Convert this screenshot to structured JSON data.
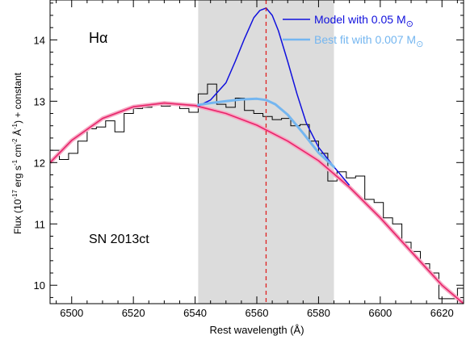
{
  "chart_data": {
    "type": "line",
    "xlabel": "Rest wavelength (Å)",
    "ylabel_main": "Flux  (10",
    "ylabel_parts": [
      "-17",
      " erg s",
      "-1",
      " cm",
      "-2",
      " Å",
      "-1",
      ") + constant"
    ],
    "xlim": [
      6493,
      6627
    ],
    "ylim": [
      9.7,
      14.65
    ],
    "x_ticks": [
      6500,
      6520,
      6540,
      6560,
      6580,
      6600,
      6620
    ],
    "y_ticks": [
      10,
      11,
      12,
      13,
      14
    ],
    "shaded_region": [
      6541,
      6585
    ],
    "reference_line_x": 6563,
    "annotations": {
      "line_name": "Hα",
      "object_name": "SN 2013ct"
    },
    "legend": {
      "placement": "top-right",
      "entries": [
        {
          "label": "Model with 0.05 M",
          "suffix": "⊙",
          "color": "#1010dd"
        },
        {
          "label": "Best fit with 0.007 M",
          "suffix": "⊙",
          "color": "#74b6f0"
        }
      ]
    },
    "colors": {
      "spectrum": "#000000",
      "continuum": "#e8246a",
      "continuum_band": "#f6a9c4",
      "model": "#1010dd",
      "best_fit": "#74b6f0",
      "reference_line": "#e02020",
      "shade": "#dcdcdc"
    },
    "series": [
      {
        "name": "Spectrum",
        "style": "step",
        "x": [
          6493,
          6496,
          6499,
          6502,
          6505,
          6508,
          6511,
          6514,
          6517,
          6520,
          6523,
          6526,
          6529,
          6532,
          6535,
          6538,
          6541,
          6544,
          6547,
          6550,
          6553,
          6556,
          6559,
          6562,
          6565,
          6568,
          6571,
          6574,
          6577,
          6580,
          6583,
          6586,
          6589,
          6592,
          6595,
          6598,
          6601,
          6604,
          6607,
          6610,
          6613,
          6616,
          6619,
          6622,
          6625
        ],
        "y": [
          12.2,
          12.05,
          12.15,
          12.35,
          12.55,
          12.58,
          12.68,
          12.5,
          12.8,
          12.88,
          12.9,
          12.95,
          12.92,
          12.95,
          12.88,
          12.82,
          13.12,
          13.28,
          12.95,
          12.9,
          13.05,
          12.85,
          12.8,
          12.75,
          12.7,
          12.72,
          12.6,
          12.62,
          12.35,
          12.15,
          11.7,
          11.85,
          11.75,
          11.78,
          11.4,
          11.35,
          11.1,
          11.0,
          10.7,
          10.55,
          10.35,
          10.2,
          9.78,
          9.78,
          9.95
        ]
      },
      {
        "name": "Continuum",
        "style": "line",
        "x": [
          6493,
          6500,
          6510,
          6520,
          6530,
          6540,
          6550,
          6560,
          6570,
          6580,
          6590,
          6600,
          6610,
          6620,
          6627
        ],
        "y": [
          12.0,
          12.36,
          12.72,
          12.91,
          12.97,
          12.93,
          12.8,
          12.61,
          12.35,
          12.03,
          11.6,
          11.1,
          10.55,
          10.0,
          9.7
        ]
      },
      {
        "name": "Model with 0.05 M⊙",
        "style": "line",
        "x": [
          6541,
          6545,
          6550,
          6553,
          6556,
          6559,
          6561,
          6563,
          6565,
          6567,
          6570,
          6573,
          6576,
          6580,
          6585,
          6590
        ],
        "y": [
          12.92,
          13.02,
          13.3,
          13.65,
          14.02,
          14.36,
          14.48,
          14.52,
          14.4,
          14.15,
          13.65,
          13.12,
          12.65,
          12.25,
          11.93,
          11.63
        ]
      },
      {
        "name": "Best fit with 0.007 M⊙",
        "style": "line",
        "x": [
          6541,
          6545,
          6550,
          6555,
          6560,
          6563,
          6566,
          6570,
          6575,
          6580,
          6585
        ],
        "y": [
          12.94,
          12.97,
          13.0,
          13.03,
          13.04,
          13.02,
          12.95,
          12.78,
          12.48,
          12.16,
          11.93
        ]
      }
    ]
  }
}
